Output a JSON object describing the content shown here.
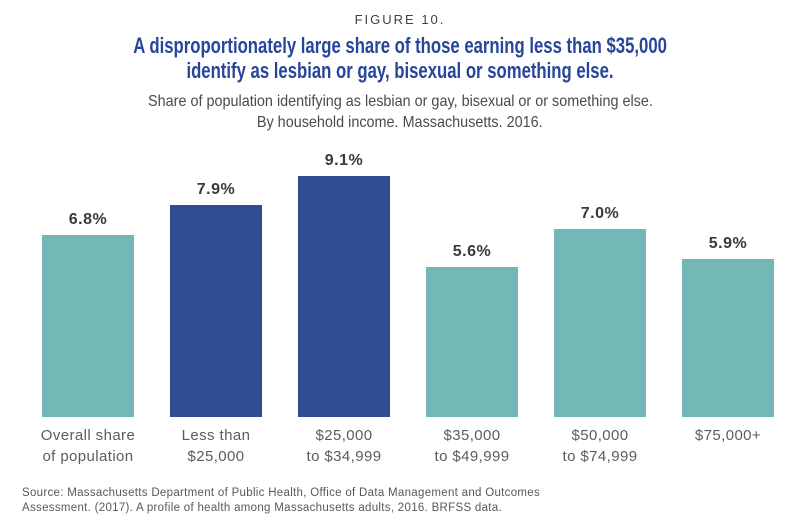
{
  "figure_label": "FIGURE 10.",
  "title": {
    "line1": "A disproportionately large share of those earning less than $35,000",
    "line2": "identify as lesbian or gay, bisexual or something else."
  },
  "subtitle": {
    "line1": "Share of population identifying as lesbian or gay, bisexual or or something else.",
    "line2": "By household income. Massachusetts. 2016."
  },
  "source": {
    "line1": "Source: Massachusetts Department of Public Health, Office of Data Management and Outcomes",
    "line2": "Assessment. (2017). A profile of health among Massachusetts adults, 2016. BRFSS data."
  },
  "colors": {
    "teal": "#73B8B7",
    "blue": "#2F4D91",
    "title_blue": "#27459B",
    "value_label": "#3A3A3A",
    "category_label": "#5C5C5C"
  },
  "chart_data": {
    "type": "bar",
    "title": "A disproportionately large share of those earning less than $35,000 identify as lesbian or gay, bisexual or something else.",
    "subtitle": "Share of population identifying as lesbian or gay, bisexual or or something else. By household income. Massachusetts. 2016.",
    "categories": [
      [
        "Overall share",
        "of population"
      ],
      [
        "Less than",
        "$25,000"
      ],
      [
        "$25,000",
        "to $34,999"
      ],
      [
        "$35,000",
        "to $49,999"
      ],
      [
        "$50,000",
        "to $74,999"
      ],
      [
        "$75,000+"
      ]
    ],
    "values": [
      6.8,
      7.9,
      9.1,
      5.6,
      7.0,
      5.9
    ],
    "value_labels": [
      "6.8%",
      "7.9%",
      "9.1%",
      "5.6%",
      "7.0%",
      "5.9%"
    ],
    "bar_colors": [
      "#73B8B7",
      "#2F4D91",
      "#2F4D91",
      "#73B8B7",
      "#73B8B7",
      "#73B8B7"
    ],
    "xlabel": "",
    "ylabel": "",
    "ylim": [
      0,
      10
    ],
    "grid": false,
    "legend": false,
    "axis_lines": false
  }
}
